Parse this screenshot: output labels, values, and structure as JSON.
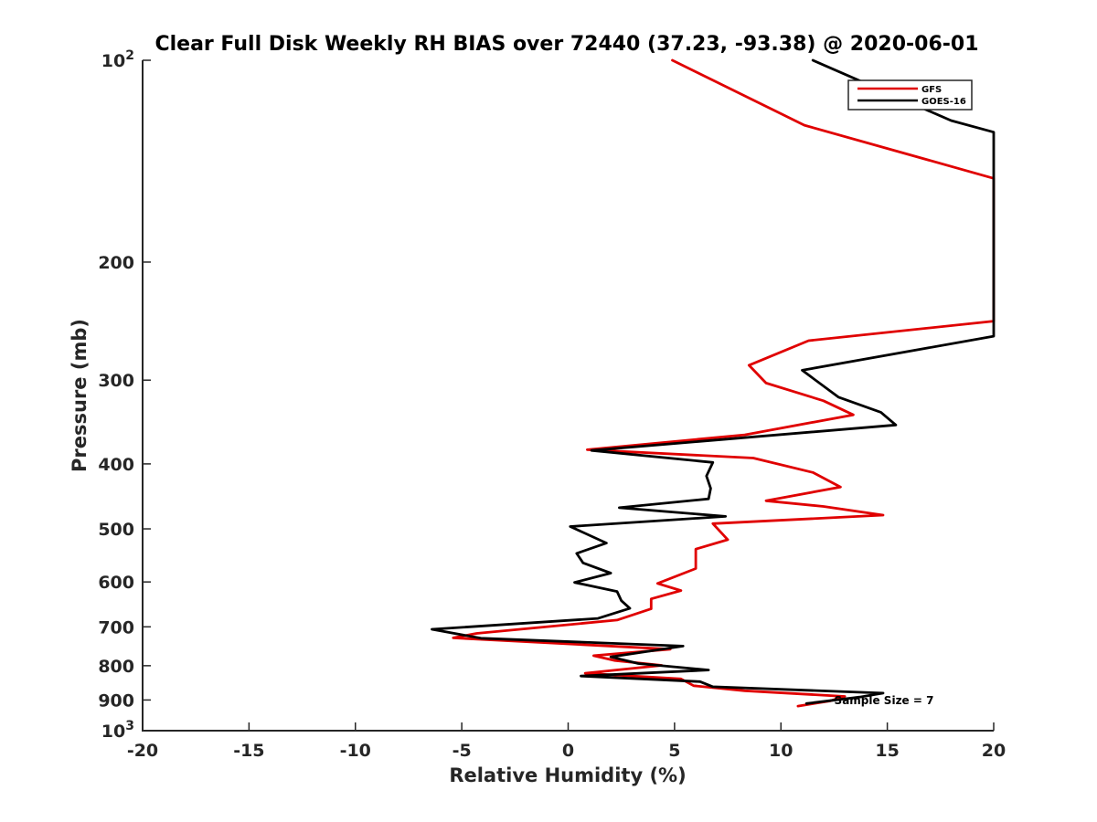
{
  "chart_data": {
    "type": "line",
    "title": "Clear Full Disk Weekly RH BIAS over 72440 (37.23, -93.38) @ 2020-06-01",
    "xlabel": "Relative Humidity (%)",
    "ylabel": "Pressure (mb)",
    "xlim": [
      -20,
      20
    ],
    "ylim": [
      100,
      1000
    ],
    "y_scale": "log",
    "y_reversed": true,
    "grid": false,
    "legend_position": "top-right",
    "annotation": "Sample Size = 7",
    "x_ticks": [
      {
        "value": -20,
        "label": "-20"
      },
      {
        "value": -15,
        "label": "-15"
      },
      {
        "value": -10,
        "label": "-10"
      },
      {
        "value": -5,
        "label": "-5"
      },
      {
        "value": 0,
        "label": "0"
      },
      {
        "value": 5,
        "label": "5"
      },
      {
        "value": 10,
        "label": "10"
      },
      {
        "value": 15,
        "label": "15"
      },
      {
        "value": 20,
        "label": "20"
      }
    ],
    "y_ticks": [
      {
        "value": 100,
        "label": "10",
        "sup": "2"
      },
      {
        "value": 200,
        "label": "200",
        "sup": ""
      },
      {
        "value": 300,
        "label": "300",
        "sup": ""
      },
      {
        "value": 400,
        "label": "400",
        "sup": ""
      },
      {
        "value": 500,
        "label": "500",
        "sup": ""
      },
      {
        "value": 600,
        "label": "600",
        "sup": ""
      },
      {
        "value": 700,
        "label": "700",
        "sup": ""
      },
      {
        "value": 800,
        "label": "800",
        "sup": ""
      },
      {
        "value": 900,
        "label": "900",
        "sup": ""
      },
      {
        "value": 1000,
        "label": "10",
        "sup": "3"
      }
    ],
    "series": [
      {
        "name": "GFS",
        "color": "#e00000",
        "points": [
          [
            4.9,
            100
          ],
          [
            11.1,
            125
          ],
          [
            20.0,
            150
          ],
          [
            20.0,
            245
          ],
          [
            11.3,
            262
          ],
          [
            8.5,
            285
          ],
          [
            9.3,
            303
          ],
          [
            12.0,
            322
          ],
          [
            13.4,
            338
          ],
          [
            8.3,
            362
          ],
          [
            0.9,
            381
          ],
          [
            8.7,
            392
          ],
          [
            11.5,
            412
          ],
          [
            12.8,
            433
          ],
          [
            9.3,
            454
          ],
          [
            12.0,
            463
          ],
          [
            14.8,
            477
          ],
          [
            6.8,
            491
          ],
          [
            7.5,
            519
          ],
          [
            6.0,
            536
          ],
          [
            6.0,
            573
          ],
          [
            4.2,
            603
          ],
          [
            5.3,
            618
          ],
          [
            3.9,
            636
          ],
          [
            3.9,
            658
          ],
          [
            2.3,
            684
          ],
          [
            -4.3,
            716
          ],
          [
            -5.4,
            727
          ],
          [
            4.8,
            756
          ],
          [
            1.2,
            773
          ],
          [
            2.2,
            786
          ],
          [
            4.4,
            799
          ],
          [
            0.8,
            821
          ],
          [
            5.3,
            837
          ],
          [
            5.9,
            857
          ],
          [
            8.3,
            872
          ],
          [
            13.0,
            889
          ],
          [
            12.3,
            903
          ],
          [
            10.8,
            919
          ]
        ]
      },
      {
        "name": "GOES-16",
        "color": "#000000",
        "points": [
          [
            11.5,
            100
          ],
          [
            18.0,
            123
          ],
          [
            20.0,
            128
          ],
          [
            20.0,
            258
          ],
          [
            11.0,
            290
          ],
          [
            12.7,
            318
          ],
          [
            14.7,
            335
          ],
          [
            15.4,
            350
          ],
          [
            1.1,
            382
          ],
          [
            6.8,
            398
          ],
          [
            6.5,
            417
          ],
          [
            6.7,
            435
          ],
          [
            6.6,
            451
          ],
          [
            2.4,
            465
          ],
          [
            7.4,
            479
          ],
          [
            0.1,
            496
          ],
          [
            1.8,
            525
          ],
          [
            0.4,
            544
          ],
          [
            0.7,
            562
          ],
          [
            2.0,
            582
          ],
          [
            0.3,
            601
          ],
          [
            2.3,
            620
          ],
          [
            2.5,
            640
          ],
          [
            2.9,
            657
          ],
          [
            1.4,
            680
          ],
          [
            -6.4,
            706
          ],
          [
            -4.1,
            728
          ],
          [
            5.4,
            748
          ],
          [
            2.0,
            776
          ],
          [
            3.3,
            794
          ],
          [
            6.6,
            812
          ],
          [
            0.6,
            829
          ],
          [
            6.2,
            845
          ],
          [
            6.8,
            860
          ],
          [
            14.8,
            879
          ],
          [
            13.7,
            891
          ],
          [
            11.2,
            911
          ]
        ]
      }
    ]
  }
}
